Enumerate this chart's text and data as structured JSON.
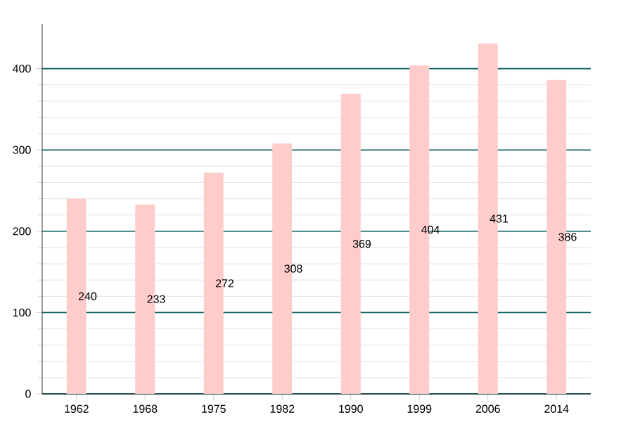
{
  "chart_data": {
    "type": "bar",
    "categories": [
      "1962",
      "1968",
      "1975",
      "1982",
      "1990",
      "1999",
      "2006",
      "2014"
    ],
    "values": [
      240,
      233,
      272,
      308,
      369,
      404,
      431,
      386
    ],
    "color": "#ffcccc",
    "ylim": [
      0,
      455
    ],
    "yticks": [
      0,
      100,
      200,
      300,
      400
    ],
    "grid": "y",
    "data_labels": true
  }
}
